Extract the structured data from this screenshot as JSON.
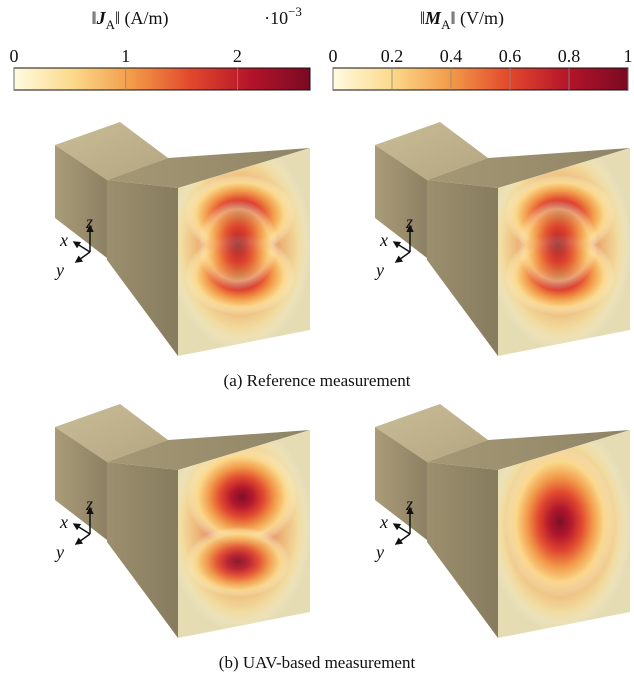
{
  "colorbars": [
    {
      "label_parts": [
        "‖",
        "J",
        "A",
        "‖ (A/m)"
      ],
      "exponent_parts": [
        "·10",
        "−3"
      ],
      "lim": [
        0,
        2.65
      ],
      "ticks": [
        0,
        1,
        2
      ]
    },
    {
      "label_parts": [
        "‖",
        "M",
        "A",
        "‖ (V/m)"
      ],
      "lim": [
        0,
        1
      ],
      "ticks": [
        0,
        0.2,
        0.4,
        0.6,
        0.8,
        1
      ]
    }
  ],
  "colormap": [
    "#fffbe0",
    "#fbd98a",
    "#f29a48",
    "#e2472c",
    "#b3142a",
    "#7a0a22"
  ],
  "axis_labels": [
    "x",
    "y",
    "z"
  ],
  "captions": [
    "(a) Reference measurement",
    "(b) UAV-based measurement"
  ]
}
